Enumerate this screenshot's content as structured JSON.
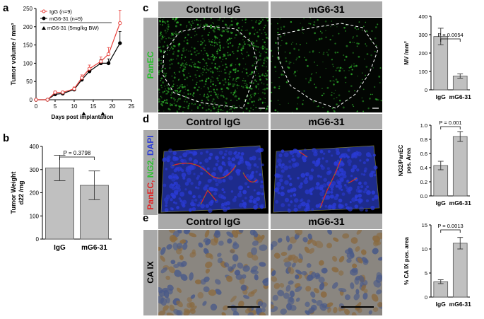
{
  "panel_labels": {
    "a": "a",
    "b": "b",
    "c": "c",
    "d": "d",
    "e": "e"
  },
  "micro": {
    "headers": {
      "left": "Control IgG",
      "right": "mG6-31"
    },
    "side_c": "PanEC",
    "side_d": {
      "p1": "PanEC, ",
      "p2": "NG2, ",
      "p3": "DAPI"
    },
    "side_e": "CA IX",
    "colors": {
      "panec": "#22c026",
      "ng2": "#2ec032",
      "dapi": "#2a3bd6",
      "red": "#e02626",
      "header": "#a9a9a9"
    }
  },
  "chart_data": [
    {
      "id": "a",
      "type": "line",
      "title": "",
      "xlabel": "Days post implantation",
      "ylabel": "Tumor volume / mm³",
      "xlim": [
        0,
        25
      ],
      "ylim": [
        0,
        250
      ],
      "xticks": [
        0,
        5,
        10,
        15,
        20,
        25
      ],
      "yticks": [
        0,
        50,
        100,
        150,
        200,
        250
      ],
      "legend": {
        "placement": "top-left"
      },
      "series": [
        {
          "name": "IgG (n=9)",
          "color": "#e8413c",
          "marker": "open-circle",
          "x": [
            0,
            3,
            5,
            7,
            10,
            12,
            14,
            17,
            19,
            22
          ],
          "y": [
            0,
            0,
            20,
            20,
            30,
            60,
            85,
            105,
            125,
            210
          ],
          "err": [
            0,
            0,
            4,
            4,
            5,
            8,
            10,
            12,
            18,
            35
          ]
        },
        {
          "name": "mG6-31 (n=9)",
          "color": "#000000",
          "marker": "filled-circle",
          "x": [
            0,
            3,
            5,
            7,
            10,
            12,
            14,
            17,
            19,
            22
          ],
          "y": [
            0,
            0,
            15,
            17,
            28,
            55,
            78,
            100,
            100,
            155
          ],
          "err": [
            0,
            0,
            3,
            3,
            4,
            6,
            8,
            10,
            12,
            32
          ]
        }
      ],
      "annotation": {
        "text": "mG6-31 (5mg/kg BW)",
        "marker_days": [
          12.5,
          17.5
        ]
      }
    },
    {
      "id": "b",
      "type": "bar",
      "ylabel_line1": "Tumor Weight",
      "ylabel_line2": "d22 /mg",
      "ylim": [
        0,
        400
      ],
      "yticks": [
        0,
        100,
        200,
        300,
        400
      ],
      "categories": [
        "IgG",
        "mG6-31"
      ],
      "values": [
        307,
        232
      ],
      "err": [
        55,
        62
      ],
      "pvalue": "P = 0.3798"
    },
    {
      "id": "c",
      "type": "bar",
      "ylabel": "MV /mm²",
      "ylim": [
        0,
        400
      ],
      "yticks": [
        0,
        100,
        200,
        300,
        400
      ],
      "categories": [
        "IgG",
        "mG6-31"
      ],
      "values": [
        290,
        75
      ],
      "err": [
        45,
        12
      ],
      "pvalue": "P = 0.0054"
    },
    {
      "id": "d",
      "type": "bar",
      "ylabel_line1": "NG2/PanEC",
      "ylabel_line2": "pos. Area",
      "ylim": [
        0,
        1.0
      ],
      "yticks": [
        0.0,
        0.2,
        0.4,
        0.6,
        0.8,
        1.0
      ],
      "categories": [
        "IgG",
        "mG6-31"
      ],
      "values": [
        0.43,
        0.84
      ],
      "err": [
        0.06,
        0.07
      ],
      "pvalue": "P = 0.001"
    },
    {
      "id": "e",
      "type": "bar",
      "ylabel": "% CA IX pos. area",
      "ylim": [
        0,
        15
      ],
      "yticks": [
        0,
        5,
        10,
        15
      ],
      "categories": [
        "IgG",
        "mG6-31"
      ],
      "values": [
        3.2,
        11.2
      ],
      "err": [
        0.4,
        1.2
      ],
      "pvalue": "P = 0.0013"
    }
  ]
}
